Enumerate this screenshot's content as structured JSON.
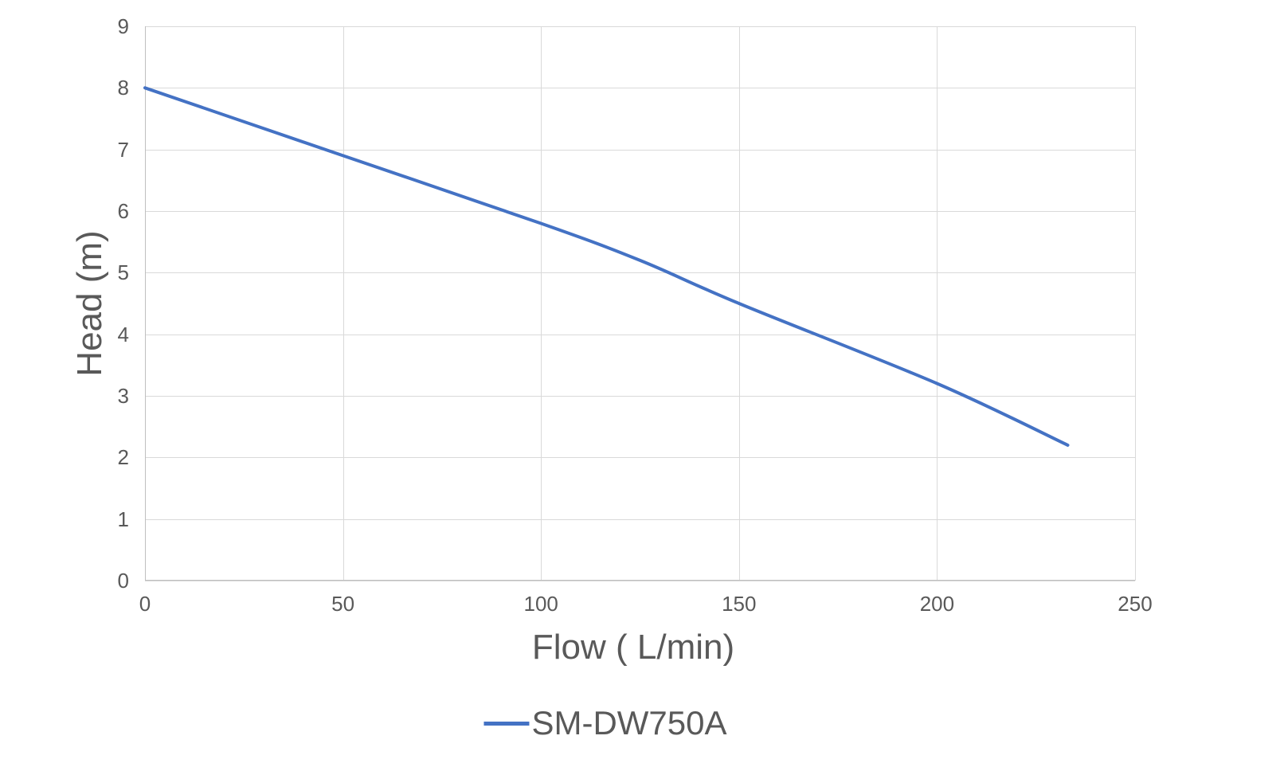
{
  "chart_data": {
    "type": "line",
    "title": "",
    "xlabel": "Flow ( L/min)",
    "ylabel": "Head (m)",
    "xlim": [
      0,
      250
    ],
    "ylim": [
      0,
      9
    ],
    "x_ticks": [
      0,
      50,
      100,
      150,
      200,
      250
    ],
    "y_ticks": [
      0,
      1,
      2,
      3,
      4,
      5,
      6,
      7,
      8,
      9
    ],
    "grid": true,
    "legend": {
      "position": "bottom-center",
      "entries": [
        {
          "label": "SM-DW750A",
          "color": "#4472C4"
        }
      ]
    },
    "series": [
      {
        "name": "SM-DW750A",
        "color": "#4472C4",
        "smooth": true,
        "points": [
          [
            0,
            8.0
          ],
          [
            50,
            6.9
          ],
          [
            100,
            5.8
          ],
          [
            125,
            5.2
          ],
          [
            150,
            4.5
          ],
          [
            200,
            3.2
          ],
          [
            233,
            2.2
          ]
        ]
      }
    ]
  },
  "colors": {
    "background": "#FFFFFF",
    "text": "#595959",
    "gridline": "#D9D9D9",
    "axis_line": "#BFBFBF",
    "series_line": "#4472C4"
  }
}
